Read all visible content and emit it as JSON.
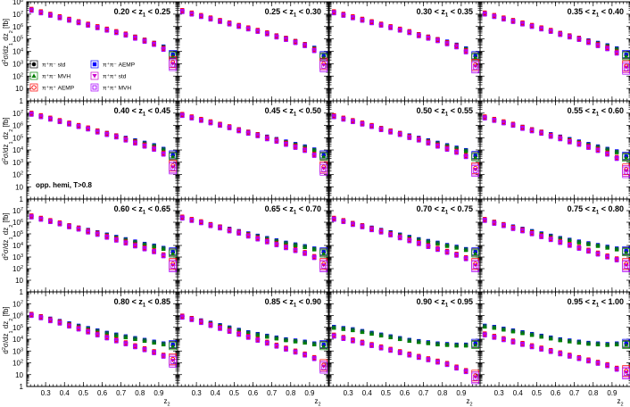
{
  "chart_data": {
    "type": "scatter",
    "xlabel": "z",
    "xlabel_sub": "2",
    "ylabel_parts": [
      "d",
      "2",
      "σ/dz",
      "1",
      " dz",
      "2",
      " [fb]"
    ],
    "xlim": [
      0.2,
      1.0
    ],
    "ylim_log10": [
      0,
      8
    ],
    "y_scale": "log",
    "x_tick_labels": [
      "0.3",
      "0.4",
      "0.5",
      "0.6",
      "0.7",
      "0.8",
      "0.9"
    ],
    "y_tick_labels": [
      {
        "base": "1",
        "exp": ""
      },
      {
        "base": "10",
        "exp": ""
      },
      {
        "base": "10",
        "exp": "2"
      },
      {
        "base": "10",
        "exp": "3"
      },
      {
        "base": "10",
        "exp": "4"
      },
      {
        "base": "10",
        "exp": "5"
      },
      {
        "base": "10",
        "exp": "6"
      },
      {
        "base": "10",
        "exp": "7"
      },
      {
        "base": "10",
        "exp": "8"
      }
    ],
    "annotation": "opp. hemi, T>0.8",
    "x": [
      0.225,
      0.275,
      0.325,
      0.375,
      0.425,
      0.475,
      0.525,
      0.575,
      0.625,
      0.675,
      0.725,
      0.775,
      0.825,
      0.875,
      0.925,
      0.975
    ],
    "legend": [
      {
        "label": "π⁺π⁻ std",
        "marker": "circle",
        "color": "#000000"
      },
      {
        "label": "π⁺π⁻ AEMP",
        "marker": "square",
        "color": "#0000ff"
      },
      {
        "label": "π⁺π⁻ MVH",
        "marker": "triangle-up",
        "color": "#008000"
      },
      {
        "label": "π⁺π⁺ std",
        "marker": "triangle-down",
        "color": "#cc00cc"
      },
      {
        "label": "π⁺π⁺ AEMP",
        "marker": "circle-open",
        "color": "#ff0000"
      },
      {
        "label": "π⁺π⁺ MVH",
        "marker": "square-open",
        "color": "#aa00ff"
      }
    ],
    "panels": [
      {
        "title": "0.20 < z",
        "title_sub": "1",
        "title_tail": " < 0.25",
        "opp_log10": [
          7.35,
          7.15,
          6.95,
          6.75,
          6.55,
          6.35,
          6.15,
          5.95,
          5.75,
          5.55,
          5.35,
          5.15,
          4.9,
          4.65,
          4.35,
          3.7
        ],
        "like_log10": [
          7.35,
          7.15,
          6.95,
          6.75,
          6.55,
          6.35,
          6.15,
          5.95,
          5.75,
          5.55,
          5.35,
          5.1,
          4.85,
          4.6,
          4.2,
          3.0
        ]
      },
      {
        "title": "0.25 < z",
        "title_sub": "1",
        "title_tail": " < 0.30",
        "opp_log10": [
          7.25,
          7.05,
          6.85,
          6.65,
          6.45,
          6.25,
          6.05,
          5.85,
          5.65,
          5.45,
          5.25,
          5.05,
          4.8,
          4.55,
          4.25,
          3.6
        ],
        "like_log10": [
          7.25,
          7.05,
          6.85,
          6.65,
          6.45,
          6.25,
          6.05,
          5.85,
          5.65,
          5.45,
          5.2,
          5.0,
          4.75,
          4.5,
          4.1,
          2.9
        ]
      },
      {
        "title": "0.30 < z",
        "title_sub": "1",
        "title_tail": " < 0.35",
        "opp_log10": [
          7.15,
          6.95,
          6.75,
          6.55,
          6.35,
          6.15,
          5.95,
          5.75,
          5.55,
          5.35,
          5.15,
          4.95,
          4.75,
          4.5,
          4.2,
          3.6
        ],
        "like_log10": [
          7.15,
          6.95,
          6.75,
          6.55,
          6.35,
          6.15,
          5.95,
          5.75,
          5.55,
          5.3,
          5.1,
          4.9,
          4.65,
          4.4,
          4.0,
          2.8
        ]
      },
      {
        "title": "0.35 < z",
        "title_sub": "1",
        "title_tail": " < 0.40",
        "opp_log10": [
          7.05,
          6.85,
          6.65,
          6.45,
          6.25,
          6.05,
          5.85,
          5.65,
          5.45,
          5.25,
          5.05,
          4.85,
          4.65,
          4.45,
          4.2,
          3.7
        ],
        "like_log10": [
          7.05,
          6.85,
          6.65,
          6.45,
          6.25,
          6.05,
          5.85,
          5.65,
          5.4,
          5.2,
          5.0,
          4.75,
          4.5,
          4.25,
          3.9,
          2.7
        ]
      },
      {
        "title": "0.40 < z",
        "title_sub": "1",
        "title_tail": " < 0.45",
        "opp_log10": [
          6.95,
          6.75,
          6.55,
          6.35,
          6.15,
          5.95,
          5.75,
          5.55,
          5.35,
          5.15,
          4.95,
          4.75,
          4.55,
          4.35,
          4.05,
          3.55
        ],
        "like_log10": [
          6.95,
          6.75,
          6.55,
          6.35,
          6.15,
          5.95,
          5.75,
          5.5,
          5.3,
          5.1,
          4.85,
          4.6,
          4.35,
          4.1,
          3.7,
          2.6
        ]
      },
      {
        "title": "0.45 < z",
        "title_sub": "1",
        "title_tail": " < 0.50",
        "opp_log10": [
          6.85,
          6.65,
          6.45,
          6.25,
          6.05,
          5.85,
          5.65,
          5.45,
          5.25,
          5.05,
          4.85,
          4.65,
          4.45,
          4.25,
          4.0,
          3.55
        ],
        "like_log10": [
          6.85,
          6.65,
          6.45,
          6.25,
          6.05,
          5.85,
          5.6,
          5.4,
          5.2,
          4.95,
          4.75,
          4.5,
          4.25,
          4.0,
          3.6,
          2.5
        ]
      },
      {
        "title": "0.50 < z",
        "title_sub": "1",
        "title_tail": " < 0.55",
        "opp_log10": [
          6.75,
          6.55,
          6.35,
          6.15,
          5.95,
          5.75,
          5.55,
          5.35,
          5.15,
          4.95,
          4.75,
          4.55,
          4.35,
          4.15,
          3.95,
          3.5
        ],
        "like_log10": [
          6.75,
          6.55,
          6.35,
          6.15,
          5.95,
          5.7,
          5.5,
          5.3,
          5.05,
          4.85,
          4.6,
          4.35,
          4.1,
          3.85,
          3.5,
          2.4
        ]
      },
      {
        "title": "0.55 < z",
        "title_sub": "1",
        "title_tail": " < 0.60",
        "opp_log10": [
          6.65,
          6.45,
          6.25,
          6.05,
          5.85,
          5.65,
          5.45,
          5.25,
          5.05,
          4.85,
          4.65,
          4.45,
          4.25,
          4.05,
          3.85,
          3.45
        ],
        "like_log10": [
          6.65,
          6.45,
          6.25,
          6.05,
          5.8,
          5.6,
          5.4,
          5.15,
          4.95,
          4.7,
          4.5,
          4.25,
          4.0,
          3.7,
          3.35,
          2.3
        ]
      },
      {
        "title": "0.60 < z",
        "title_sub": "1",
        "title_tail": " < 0.65",
        "opp_log10": [
          6.5,
          6.3,
          6.1,
          5.9,
          5.7,
          5.5,
          5.3,
          5.1,
          4.9,
          4.7,
          4.5,
          4.3,
          4.1,
          3.95,
          3.75,
          3.4
        ],
        "like_log10": [
          6.5,
          6.3,
          6.1,
          5.9,
          5.65,
          5.45,
          5.2,
          5.0,
          4.75,
          4.5,
          4.25,
          4.0,
          3.75,
          3.5,
          3.15,
          2.3
        ]
      },
      {
        "title": "0.65 < z",
        "title_sub": "1",
        "title_tail": " < 0.70",
        "opp_log10": [
          6.4,
          6.2,
          6.0,
          5.8,
          5.6,
          5.4,
          5.2,
          5.0,
          4.8,
          4.6,
          4.4,
          4.2,
          4.05,
          3.9,
          3.7,
          3.4
        ],
        "like_log10": [
          6.4,
          6.2,
          6.0,
          5.75,
          5.55,
          5.3,
          5.1,
          4.85,
          4.6,
          4.35,
          4.1,
          3.85,
          3.6,
          3.35,
          3.0,
          2.3
        ]
      },
      {
        "title": "0.70 < z",
        "title_sub": "1",
        "title_tail": " < 0.75",
        "opp_log10": [
          6.3,
          6.1,
          5.9,
          5.7,
          5.5,
          5.3,
          5.1,
          4.9,
          4.7,
          4.5,
          4.35,
          4.2,
          4.0,
          3.85,
          3.65,
          3.4
        ],
        "like_log10": [
          6.3,
          6.1,
          5.85,
          5.65,
          5.4,
          5.2,
          4.95,
          4.7,
          4.45,
          4.2,
          3.95,
          3.7,
          3.45,
          3.2,
          2.9,
          2.3
        ]
      },
      {
        "title": "0.75 < z",
        "title_sub": "1",
        "title_tail": " < 0.80",
        "opp_log10": [
          6.2,
          6.0,
          5.8,
          5.6,
          5.4,
          5.2,
          5.0,
          4.8,
          4.6,
          4.45,
          4.3,
          4.15,
          4.0,
          3.85,
          3.7,
          3.5
        ],
        "like_log10": [
          6.2,
          5.95,
          5.75,
          5.5,
          5.3,
          5.05,
          4.8,
          4.55,
          4.3,
          4.05,
          3.8,
          3.55,
          3.3,
          3.05,
          2.8,
          2.3
        ]
      },
      {
        "title": "0.80 < z",
        "title_sub": "1",
        "title_tail": " < 0.85",
        "opp_log10": [
          6.1,
          5.9,
          5.7,
          5.5,
          5.3,
          5.1,
          4.9,
          4.7,
          4.5,
          4.35,
          4.2,
          4.05,
          3.9,
          3.75,
          3.6,
          3.5
        ],
        "like_log10": [
          6.05,
          5.85,
          5.6,
          5.4,
          5.15,
          4.9,
          4.65,
          4.4,
          4.15,
          3.9,
          3.65,
          3.4,
          3.15,
          2.9,
          2.6,
          2.2
        ]
      },
      {
        "title": "0.85 < z",
        "title_sub": "1",
        "title_tail": " < 0.90",
        "opp_log10": [
          5.95,
          5.75,
          5.55,
          5.35,
          5.15,
          4.95,
          4.75,
          4.55,
          4.4,
          4.25,
          4.1,
          3.95,
          3.85,
          3.75,
          3.6,
          3.5
        ],
        "like_log10": [
          5.9,
          5.7,
          5.45,
          5.2,
          4.95,
          4.7,
          4.45,
          4.2,
          3.95,
          3.7,
          3.45,
          3.2,
          2.95,
          2.7,
          2.4,
          1.7
        ]
      },
      {
        "title": "0.90 < z",
        "title_sub": "1",
        "title_tail": " < 0.95",
        "opp_log10": [
          5.0,
          4.9,
          4.8,
          4.65,
          4.5,
          4.35,
          4.2,
          4.05,
          3.9,
          3.8,
          3.7,
          3.6,
          3.55,
          3.5,
          3.5,
          3.6
        ],
        "like_log10": [
          4.3,
          4.1,
          3.9,
          3.7,
          3.5,
          3.3,
          3.1,
          2.9,
          2.7,
          2.5,
          2.3,
          2.1,
          1.9,
          1.6,
          1.3,
          0.8
        ]
      },
      {
        "title": "0.95 < z",
        "title_sub": "1",
        "title_tail": " < 1.00",
        "opp_log10": [
          5.1,
          5.0,
          4.85,
          4.7,
          4.55,
          4.4,
          4.25,
          4.1,
          3.95,
          3.85,
          3.75,
          3.65,
          3.6,
          3.55,
          3.6,
          3.6
        ],
        "like_log10": [
          4.4,
          4.2,
          4.0,
          3.8,
          3.6,
          3.4,
          3.2,
          3.0,
          2.8,
          2.6,
          2.4,
          2.2,
          2.0,
          1.8,
          1.5,
          1.2
        ]
      }
    ]
  }
}
